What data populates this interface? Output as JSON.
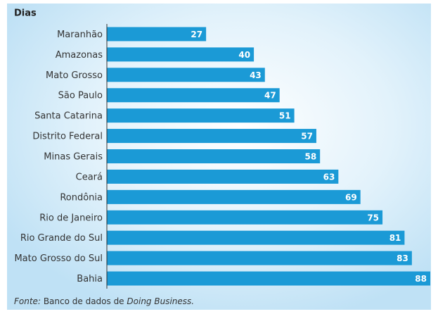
{
  "chart_data": {
    "type": "barh",
    "title": "Dias",
    "categories": [
      "Maranhão",
      "Amazonas",
      "Mato Grosso",
      "São Paulo",
      "Santa Catarina",
      "Distrito Federal",
      "Minas Gerais",
      "Ceará",
      "Rondônia",
      "Rio de Janeiro",
      "Rio Grande do Sul",
      "Mato Grosso do Sul",
      "Bahia"
    ],
    "values": [
      27,
      40,
      43,
      47,
      51,
      57,
      58,
      63,
      69,
      75,
      81,
      83,
      88
    ],
    "color": "#1b9ad6",
    "xlim": [
      0,
      88
    ],
    "source": {
      "label": "Fonte:",
      "text": "Banco de dados de",
      "italic": "Doing Business."
    }
  }
}
